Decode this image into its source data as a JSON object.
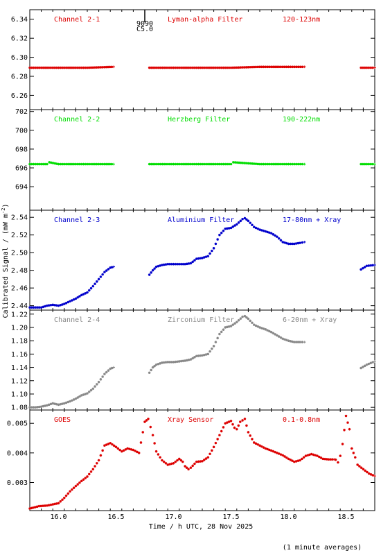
{
  "chart_data": {
    "type": "scatter",
    "xlabel": "Time / h UTC, 28 Nov 2025",
    "ylabel": "Calibrated Signal / (mW m",
    "ylabel_sup": "-2",
    "ylabel_close": ")",
    "footnote": "(1 minute averages)",
    "marker_label_top": "9090",
    "marker_label_bottom": "C5.0",
    "marker_x": 16.75,
    "xlim": [
      15.75,
      18.75
    ],
    "xticks": [
      16.0,
      16.5,
      17.0,
      17.5,
      18.0,
      18.5
    ],
    "xtick_labels": [
      "16.0",
      "16.5",
      "17.0",
      "17.5",
      "18.0",
      "18.5"
    ],
    "panels": [
      {
        "name": "Channel 2-1",
        "filter": "Lyman-alpha Filter",
        "band": "120-123nm",
        "color": "#dd0000",
        "ylim": [
          6.245,
          6.35
        ],
        "yticks": [
          6.26,
          6.28,
          6.3,
          6.32,
          6.34
        ],
        "ytick_labels": [
          "6.26",
          "6.28",
          "6.30",
          "6.32",
          "6.34"
        ],
        "segments": [
          {
            "x": [
              15.75,
              16.0,
              16.25,
              16.48
            ],
            "y": [
              6.289,
              6.289,
              6.289,
              6.29
            ]
          },
          {
            "x": [
              16.79,
              17.0,
              17.25,
              17.5,
              17.75,
              18.0,
              18.14
            ],
            "y": [
              6.289,
              6.289,
              6.289,
              6.289,
              6.29,
              6.29,
              6.29
            ]
          },
          {
            "x": [
              18.63,
              18.75
            ],
            "y": [
              6.289,
              6.289
            ]
          }
        ]
      },
      {
        "name": "Channel 2-2",
        "filter": "Herzberg Filter",
        "band": "190-222nm",
        "color": "#00dd00",
        "ylim": [
          691.5,
          702.2
        ],
        "yticks": [
          694,
          696,
          698,
          700,
          702
        ],
        "ytick_labels": [
          "694",
          "696",
          "698",
          "700",
          "702"
        ],
        "segments": [
          {
            "x": [
              15.75,
              15.9,
              15.92,
              16.0,
              16.25,
              16.48
            ],
            "y": [
              696.4,
              696.4,
              696.6,
              696.4,
              696.4,
              696.4
            ]
          },
          {
            "x": [
              16.79,
              17.0,
              17.25,
              17.5,
              17.52,
              17.75,
              18.0,
              18.14
            ],
            "y": [
              696.4,
              696.4,
              696.4,
              696.4,
              696.6,
              696.4,
              696.4,
              696.4
            ]
          },
          {
            "x": [
              18.63,
              18.75
            ],
            "y": [
              696.4,
              696.4
            ]
          }
        ]
      },
      {
        "name": "Channel 2-3",
        "filter": "Aluminium Filter",
        "band": "17-80nm + Xray",
        "color": "#0000cc",
        "ylim": [
          2.435,
          2.548
        ],
        "yticks": [
          2.44,
          2.46,
          2.48,
          2.5,
          2.52,
          2.54
        ],
        "ytick_labels": [
          "2.44",
          "2.46",
          "2.48",
          "2.50",
          "2.52",
          "2.54"
        ],
        "segments": [
          {
            "x": [
              15.75,
              15.8,
              15.85,
              15.9,
              15.95,
              16.0,
              16.05,
              16.1,
              16.15,
              16.2,
              16.25,
              16.3,
              16.35,
              16.4,
              16.45,
              16.48
            ],
            "y": [
              2.438,
              2.438,
              2.438,
              2.44,
              2.441,
              2.44,
              2.442,
              2.445,
              2.448,
              2.452,
              2.455,
              2.462,
              2.47,
              2.478,
              2.483,
              2.484
            ]
          },
          {
            "x": [
              16.79,
              16.82,
              16.85,
              16.9,
              16.95,
              17.0,
              17.05,
              17.1,
              17.15,
              17.2,
              17.25,
              17.3,
              17.35,
              17.4,
              17.45,
              17.5,
              17.55,
              17.6,
              17.62,
              17.65,
              17.7,
              17.75,
              17.8,
              17.85,
              17.9,
              17.95,
              18.0,
              18.05,
              18.1,
              18.14
            ],
            "y": [
              2.475,
              2.48,
              2.484,
              2.486,
              2.487,
              2.487,
              2.487,
              2.487,
              2.488,
              2.493,
              2.494,
              2.496,
              2.505,
              2.52,
              2.527,
              2.528,
              2.532,
              2.538,
              2.539,
              2.536,
              2.529,
              2.526,
              2.524,
              2.522,
              2.518,
              2.512,
              2.51,
              2.51,
              2.511,
              2.512
            ]
          },
          {
            "x": [
              18.63,
              18.68,
              18.75
            ],
            "y": [
              2.481,
              2.485,
              2.486
            ]
          }
        ]
      },
      {
        "name": "Channel 2-4",
        "filter": "Zirconium Filter",
        "band": "6-20nm + Xray",
        "color": "#888888",
        "ylim": [
          1.076,
          1.226
        ],
        "yticks": [
          1.08,
          1.1,
          1.12,
          1.14,
          1.16,
          1.18,
          1.2,
          1.22
        ],
        "ytick_labels": [
          "1.08",
          "1.10",
          "1.12",
          "1.14",
          "1.16",
          "1.18",
          "1.20",
          "1.22"
        ],
        "segments": [
          {
            "x": [
              15.75,
              15.8,
              15.85,
              15.9,
              15.95,
              16.0,
              16.05,
              16.1,
              16.15,
              16.2,
              16.25,
              16.3,
              16.35,
              16.4,
              16.45,
              16.48
            ],
            "y": [
              1.08,
              1.08,
              1.081,
              1.083,
              1.086,
              1.084,
              1.086,
              1.089,
              1.093,
              1.098,
              1.101,
              1.108,
              1.118,
              1.13,
              1.138,
              1.14
            ]
          },
          {
            "x": [
              16.79,
              16.82,
              16.85,
              16.9,
              16.95,
              17.0,
              17.05,
              17.1,
              17.15,
              17.2,
              17.25,
              17.3,
              17.35,
              17.4,
              17.45,
              17.5,
              17.55,
              17.6,
              17.62,
              17.65,
              17.7,
              17.75,
              17.8,
              17.85,
              17.9,
              17.95,
              18.0,
              18.05,
              18.1,
              18.14
            ],
            "y": [
              1.132,
              1.14,
              1.144,
              1.147,
              1.148,
              1.148,
              1.149,
              1.15,
              1.152,
              1.157,
              1.158,
              1.16,
              1.172,
              1.19,
              1.2,
              1.202,
              1.208,
              1.216,
              1.217,
              1.213,
              1.204,
              1.2,
              1.197,
              1.193,
              1.188,
              1.183,
              1.18,
              1.178,
              1.178,
              1.178
            ]
          },
          {
            "x": [
              18.63,
              18.68,
              18.75
            ],
            "y": [
              1.139,
              1.144,
              1.149
            ]
          }
        ]
      },
      {
        "name": "GOES",
        "filter": "Xray Sensor",
        "band": "0.1-0.8nm",
        "color": "#dd0000",
        "ylim": [
          0.00205,
          0.00545
        ],
        "yticks": [
          0.003,
          0.004,
          0.005
        ],
        "ytick_labels": [
          "0.003",
          "0.004",
          "0.005"
        ],
        "segments": [
          {
            "x": [
              15.75,
              15.78,
              15.83,
              15.9,
              16.0,
              16.05,
              16.1,
              16.15,
              16.2,
              16.25,
              16.3,
              16.35,
              16.4,
              16.45,
              16.5,
              16.55,
              16.6,
              16.65,
              16.7,
              16.75,
              16.78,
              16.82,
              16.85,
              16.9,
              16.95,
              17.0,
              17.05,
              17.08,
              17.1,
              17.13,
              17.15,
              17.2,
              17.25,
              17.3,
              17.35,
              17.4,
              17.45,
              17.5,
              17.53,
              17.55,
              17.58,
              17.62,
              17.65,
              17.7,
              17.75,
              17.8,
              17.85,
              17.9,
              17.95,
              18.0,
              18.05,
              18.1,
              18.15,
              18.2,
              18.25,
              18.3,
              18.35,
              18.4
            ],
            "y": [
              0.00212,
              0.00215,
              0.0022,
              0.00222,
              0.0023,
              0.00248,
              0.0027,
              0.00288,
              0.00305,
              0.0032,
              0.00345,
              0.00375,
              0.00425,
              0.00433,
              0.0042,
              0.00405,
              0.00415,
              0.0041,
              0.004,
              0.00505,
              0.00515,
              0.0046,
              0.00405,
              0.00375,
              0.0036,
              0.00365,
              0.0038,
              0.0037,
              0.00355,
              0.00345,
              0.0035,
              0.0037,
              0.00372,
              0.00385,
              0.0042,
              0.0046,
              0.005,
              0.00508,
              0.00485,
              0.0048,
              0.00505,
              0.00515,
              0.0047,
              0.00435,
              0.00425,
              0.00415,
              0.00408,
              0.004,
              0.00392,
              0.0038,
              0.0037,
              0.00375,
              0.0039,
              0.00396,
              0.0039,
              0.0038,
              0.00378,
              0.00378
            ]
          },
          {
            "x": [
              18.41,
              18.43,
              18.45,
              18.47,
              18.5,
              18.53,
              18.55,
              18.58,
              18.6,
              18.65,
              18.7,
              18.75
            ],
            "y": [
              0.00377,
              0.00368,
              0.0039,
              0.0043,
              0.00525,
              0.0048,
              0.00415,
              0.00385,
              0.0036,
              0.00345,
              0.0033,
              0.00322
            ]
          }
        ]
      }
    ]
  }
}
